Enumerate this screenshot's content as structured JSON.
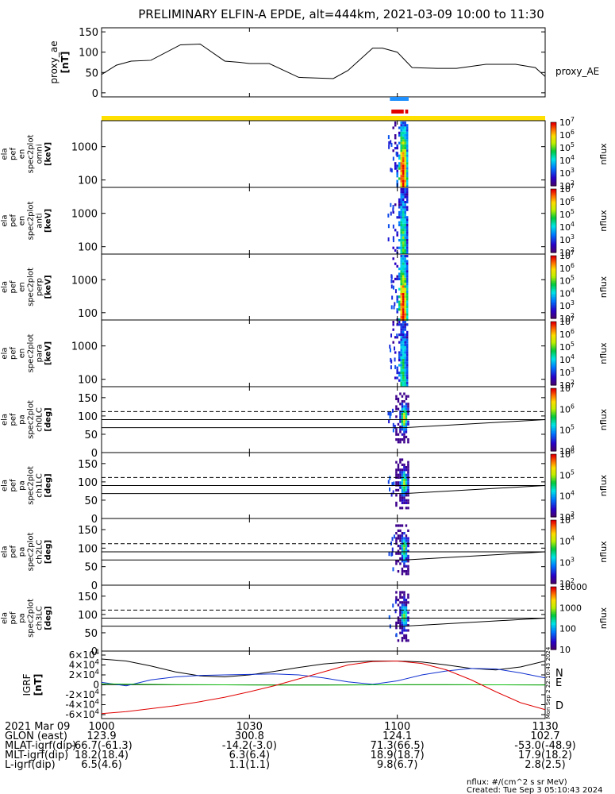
{
  "title": "PRELIMINARY ELFIN-A EPDE, alt=444km, 2021-03-09 10:00 to 11:30",
  "colors": {
    "yellow_bar": "#ffe000",
    "blue_bar": "#1e90ff",
    "red_bar": "#e00000",
    "comp_N": "#1030d0",
    "comp_E": "#10c010",
    "comp_D": "#e00000"
  },
  "chart_data": [
    {
      "id": "proxy_ae",
      "type": "line",
      "ylabel": "proxy_ae [nT]",
      "legend": "proxy_AE",
      "ylim": [
        -10,
        160
      ],
      "yticks": [
        "0",
        "50",
        "100",
        "150"
      ],
      "ytick_values": [
        0,
        50,
        100,
        150
      ],
      "x_minutes": [
        0,
        3,
        6,
        10,
        16,
        20,
        25,
        28,
        30,
        34,
        40,
        47,
        50,
        55,
        57,
        60,
        63,
        68,
        72,
        78,
        84,
        88,
        90
      ],
      "y": [
        45,
        68,
        78,
        80,
        118,
        120,
        78,
        75,
        72,
        72,
        38,
        35,
        55,
        110,
        110,
        100,
        62,
        60,
        60,
        70,
        70,
        62,
        40
      ]
    },
    {
      "id": "omni",
      "type": "heatmap",
      "ylabel_lines": [
        "ela",
        "pef",
        "en",
        "spec2plot",
        "omni",
        "[keV]"
      ],
      "yticks": [
        "100",
        "1000"
      ],
      "ytick_values": [
        100,
        1000
      ],
      "ylim": [
        60,
        6000
      ],
      "colorbar_label": "nflux",
      "colorbar_ticks": [
        "10^2",
        "10^3",
        "10^4",
        "10^5",
        "10^6",
        "10^7"
      ],
      "colorbar_exps": [
        2,
        3,
        4,
        5,
        6,
        7
      ]
    },
    {
      "id": "anti",
      "type": "heatmap",
      "ylabel_lines": [
        "ela",
        "pef",
        "en",
        "spec2plot",
        "anti",
        "[keV]"
      ],
      "yticks": [
        "100",
        "1000"
      ],
      "ytick_values": [
        100,
        1000
      ],
      "ylim": [
        60,
        6000
      ],
      "colorbar_label": "nflux",
      "colorbar_ticks": [
        "10^2",
        "10^3",
        "10^4",
        "10^5",
        "10^6",
        "10^7"
      ],
      "colorbar_exps": [
        2,
        3,
        4,
        5,
        6,
        7
      ]
    },
    {
      "id": "perp",
      "type": "heatmap",
      "ylabel_lines": [
        "ela",
        "pef",
        "en",
        "spec2plot",
        "perp",
        "[keV]"
      ],
      "yticks": [
        "100",
        "1000"
      ],
      "ytick_values": [
        100,
        1000
      ],
      "ylim": [
        60,
        6000
      ],
      "colorbar_label": "nflux",
      "colorbar_ticks": [
        "10^2",
        "10^3",
        "10^4",
        "10^5",
        "10^6",
        "10^7"
      ],
      "colorbar_exps": [
        2,
        3,
        4,
        5,
        6,
        7
      ]
    },
    {
      "id": "para",
      "type": "heatmap",
      "ylabel_lines": [
        "ela",
        "pef",
        "en",
        "spec2plot",
        "para",
        "[keV]"
      ],
      "yticks": [
        "100",
        "1000"
      ],
      "ytick_values": [
        100,
        1000
      ],
      "ylim": [
        60,
        6000
      ],
      "colorbar_label": "nflux",
      "colorbar_ticks": [
        "10^2",
        "10^3",
        "10^4",
        "10^5",
        "10^6",
        "10^7"
      ],
      "colorbar_exps": [
        2,
        3,
        4,
        5,
        6,
        7
      ]
    },
    {
      "id": "ch0LC",
      "type": "heatmap",
      "ylabel_lines": [
        "ela",
        "pef",
        "pa",
        "spec2plot",
        "ch0LC",
        "[deg]"
      ],
      "yticks": [
        "0",
        "50",
        "100",
        "150"
      ],
      "ytick_values": [
        0,
        50,
        100,
        150
      ],
      "ylim": [
        0,
        180
      ],
      "colorbar_label": "nflux",
      "colorbar_ticks": [
        "10^4",
        "10^5",
        "10^6",
        "10^7"
      ],
      "colorbar_exps": [
        4,
        5,
        6,
        7
      ]
    },
    {
      "id": "ch1LC",
      "type": "heatmap",
      "ylabel_lines": [
        "ela",
        "pef",
        "pa",
        "spec2plot",
        "ch1LC",
        "[deg]"
      ],
      "yticks": [
        "0",
        "50",
        "100",
        "150"
      ],
      "ytick_values": [
        0,
        50,
        100,
        150
      ],
      "ylim": [
        0,
        180
      ],
      "colorbar_label": "nflux",
      "colorbar_ticks": [
        "10^3",
        "10^4",
        "10^5",
        "10^6"
      ],
      "colorbar_exps": [
        3,
        4,
        5,
        6
      ]
    },
    {
      "id": "ch2LC",
      "type": "heatmap",
      "ylabel_lines": [
        "ela",
        "pef",
        "pa",
        "spec2plot",
        "ch2LC",
        "[deg]"
      ],
      "yticks": [
        "0",
        "50",
        "100",
        "150"
      ],
      "ytick_values": [
        0,
        50,
        100,
        150
      ],
      "ylim": [
        0,
        180
      ],
      "colorbar_label": "nflux",
      "colorbar_ticks": [
        "10^2",
        "10^3",
        "10^4",
        "10^5"
      ],
      "colorbar_exps": [
        2,
        3,
        4,
        5
      ]
    },
    {
      "id": "ch3LC",
      "type": "heatmap",
      "ylabel_lines": [
        "ela",
        "pef",
        "pa",
        "spec2plot",
        "ch3LC",
        "[deg]"
      ],
      "yticks": [
        "0",
        "50",
        "100",
        "150"
      ],
      "ytick_values": [
        0,
        50,
        100,
        150
      ],
      "ylim": [
        0,
        180
      ],
      "colorbar_label": "nflux",
      "colorbar_ticks": [
        "10",
        "100",
        "1000",
        "10000"
      ],
      "colorbar_exps": [
        1,
        2,
        3,
        4
      ]
    },
    {
      "id": "igrf",
      "type": "line",
      "ylabel": "IGRF [nT]",
      "ylim": [
        -68000,
        68000
      ],
      "yticks": [
        "-6×10^4",
        "-4×10^4",
        "-2×10^4",
        "0",
        "2×10^4",
        "4×10^4",
        "6×10^4"
      ],
      "ytick_values": [
        -60000,
        -40000,
        -20000,
        0,
        20000,
        40000,
        60000
      ],
      "legend": [
        "N",
        "E",
        "D"
      ],
      "side_text": "Mon Sep  2 22:10:43 2024",
      "x_minutes": [
        0,
        5,
        10,
        15,
        20,
        25,
        30,
        35,
        40,
        45,
        50,
        55,
        60,
        65,
        70,
        75,
        80,
        85,
        90
      ],
      "series": [
        {
          "name": "",
          "color": "#000000",
          "values": [
            52000,
            48000,
            38000,
            26000,
            18000,
            16000,
            20000,
            27000,
            35000,
            42000,
            46000,
            48000,
            48000,
            46000,
            40000,
            33000,
            30000,
            36000,
            48000
          ]
        },
        {
          "name": "N",
          "color": "#1030d0",
          "values": [
            5000,
            -2000,
            10000,
            16000,
            19000,
            20000,
            21000,
            22000,
            20000,
            14000,
            6000,
            1000,
            8000,
            20000,
            28000,
            33000,
            32000,
            24000,
            14000
          ]
        },
        {
          "name": "E",
          "color": "#10c010",
          "values": [
            2000,
            1500,
            1000,
            500,
            200,
            0,
            -300,
            -500,
            -600,
            -500,
            -300,
            0,
            300,
            500,
            400,
            200,
            0,
            -200,
            -400
          ]
        },
        {
          "name": "D",
          "color": "#e00000",
          "values": [
            -58000,
            -54000,
            -48000,
            -42000,
            -34000,
            -25000,
            -14000,
            -2000,
            12000,
            26000,
            40000,
            47000,
            48000,
            43000,
            30000,
            10000,
            -14000,
            -36000,
            -50000
          ]
        }
      ]
    }
  ],
  "xaxis": {
    "ticks": [
      "1000",
      "1030",
      "1100",
      "1130"
    ],
    "tick_minutes": [
      0,
      30,
      60,
      90
    ],
    "rows": [
      {
        "label": "2021 Mar 09",
        "values": [
          "",
          "",
          "",
          ""
        ]
      },
      {
        "label": "GLON (east)",
        "values": [
          "123.9",
          "300.8",
          "124.1",
          "102.7"
        ]
      },
      {
        "label": "MLAT-igrf(dip)",
        "values": [
          "-66.7(-61.3)",
          "-14.2(-3.0)",
          "71.3(66.5)",
          "-53.0(-48.9)"
        ]
      },
      {
        "label": "MLT-igrf(dip)",
        "values": [
          "18.2(18.4)",
          "6.3(6.4)",
          "18.9(18.7)",
          "17.9(18.2)"
        ]
      },
      {
        "label": "L-igrf(dip)",
        "values": [
          "6.5(4.6)",
          "1.1(1.1)",
          "9.8(6.7)",
          "2.8(2.5)"
        ]
      }
    ]
  },
  "footer": {
    "units": "nflux: #/(cm^2 s sr MeV)",
    "created": "Created: Tue Sep  3 05:10:43 2024"
  }
}
